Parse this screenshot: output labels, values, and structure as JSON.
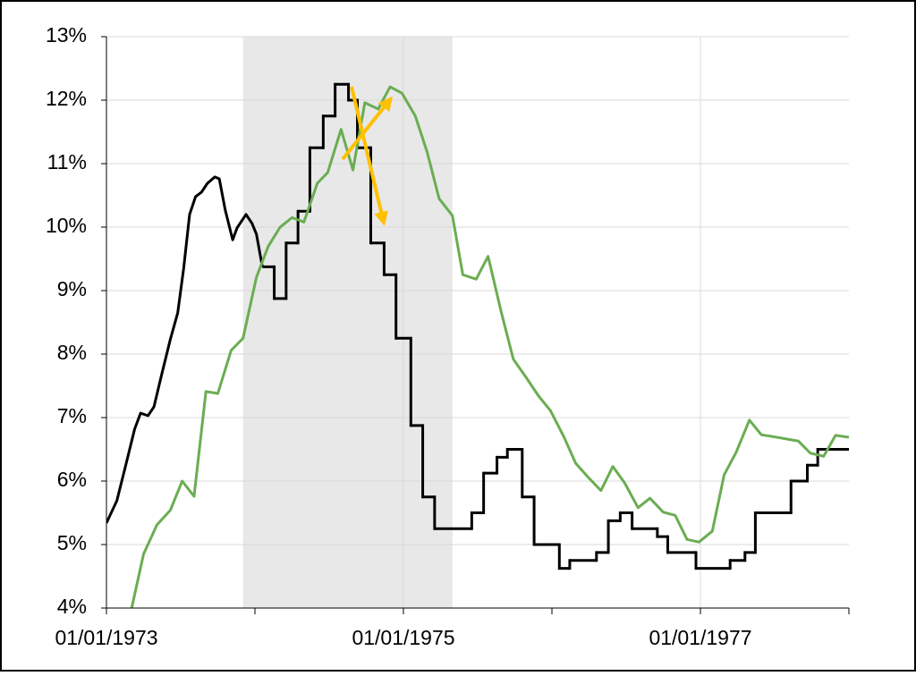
{
  "chart_data": {
    "type": "line",
    "xlim": [
      1973,
      1978
    ],
    "xticks": [
      {
        "value": 1973,
        "label": "01/01/1973"
      },
      {
        "value": 1974,
        "label": null
      },
      {
        "value": 1975,
        "label": "01/01/1975"
      },
      {
        "value": 1976,
        "label": null
      },
      {
        "value": 1977,
        "label": "01/01/1977"
      },
      {
        "value": 1978,
        "label": null
      }
    ],
    "ylim": [
      4,
      13
    ],
    "yticks": [
      {
        "value": 4,
        "label": "4%"
      },
      {
        "value": 5,
        "label": "5%"
      },
      {
        "value": 6,
        "label": "6%"
      },
      {
        "value": 7,
        "label": "7%"
      },
      {
        "value": 8,
        "label": "8%"
      },
      {
        "value": 9,
        "label": "9%"
      },
      {
        "value": 10,
        "label": "10%"
      },
      {
        "value": 11,
        "label": "11%"
      },
      {
        "value": 12,
        "label": "12%"
      },
      {
        "value": 13,
        "label": "13%"
      }
    ],
    "grid": true,
    "shaded_regions": [
      {
        "x0": 1973.92,
        "x1": 1975.33,
        "color": "#e8e8e8"
      }
    ],
    "series": [
      {
        "color": "#000000",
        "x": [
          1973.0,
          1973.07,
          1973.13,
          1973.19,
          1973.23,
          1973.28,
          1973.32,
          1973.37,
          1973.43,
          1973.48,
          1973.52,
          1973.56,
          1973.6,
          1973.64,
          1973.68,
          1973.73,
          1973.76,
          1973.8,
          1973.85,
          1973.88,
          1973.94,
          1973.98,
          1974.01,
          1974.05
        ],
        "values": [
          5.34,
          5.69,
          6.25,
          6.82,
          7.07,
          7.03,
          7.17,
          7.66,
          8.23,
          8.65,
          9.35,
          10.2,
          10.48,
          10.55,
          10.69,
          10.79,
          10.76,
          10.27,
          9.8,
          9.99,
          10.2,
          10.06,
          9.89,
          9.375
        ]
      },
      {
        "color": "#000000",
        "step": true,
        "x": [
          1974.05,
          1974.13,
          1974.21,
          1974.29,
          1974.37,
          1974.46,
          1974.54,
          1974.63,
          1974.69,
          1974.78,
          1974.87,
          1974.95,
          1975.05,
          1975.13,
          1975.21,
          1975.46,
          1975.54,
          1975.63,
          1975.7,
          1975.8,
          1975.88,
          1976.05,
          1976.12,
          1976.3,
          1976.38,
          1976.46,
          1976.54,
          1976.71,
          1976.78,
          1976.97,
          1977.2,
          1977.3,
          1977.37,
          1977.61,
          1977.72,
          1977.79
        ],
        "values": [
          9.375,
          8.875,
          9.75,
          10.25,
          11.25,
          11.75,
          12.25,
          12.0,
          11.25,
          9.75,
          9.25,
          8.25,
          6.875,
          5.75,
          5.25,
          5.5,
          6.125,
          6.375,
          6.5,
          5.75,
          5.0,
          4.625,
          4.75,
          4.875,
          5.375,
          5.5,
          5.25,
          5.125,
          4.875,
          4.625,
          4.75,
          4.875,
          5.5,
          6.0,
          6.25,
          6.5
        ]
      },
      {
        "color": "#6aad52",
        "x": [
          1973.17,
          1973.25,
          1973.34,
          1973.43,
          1973.51,
          1973.59,
          1973.67,
          1973.75,
          1973.84,
          1973.92,
          1974.01,
          1974.09,
          1974.17,
          1974.25,
          1974.33,
          1974.42,
          1974.49,
          1974.58,
          1974.66,
          1974.74,
          1974.83,
          1974.91,
          1974.99,
          1975.08,
          1975.16,
          1975.24,
          1975.33,
          1975.4,
          1975.49,
          1975.57,
          1975.66,
          1975.74,
          1975.83,
          1975.91,
          1975.99,
          1976.08,
          1976.16,
          1976.24,
          1976.33,
          1976.41,
          1976.49,
          1976.58,
          1976.66,
          1976.75,
          1976.83,
          1976.91,
          1976.99,
          1977.08,
          1977.16,
          1977.24,
          1977.33,
          1977.41,
          1977.49,
          1977.66,
          1977.74,
          1977.83,
          1977.91,
          1978.0
        ],
        "values": [
          4.0,
          4.85,
          5.31,
          5.54,
          6.0,
          5.76,
          7.41,
          7.38,
          8.06,
          8.25,
          9.21,
          9.7,
          10.0,
          10.15,
          10.08,
          10.69,
          10.86,
          11.54,
          10.9,
          11.96,
          11.86,
          12.21,
          12.11,
          11.75,
          11.18,
          10.45,
          10.18,
          9.25,
          9.18,
          9.54,
          8.65,
          7.92,
          7.62,
          7.34,
          7.11,
          6.7,
          6.28,
          6.07,
          5.85,
          6.23,
          5.97,
          5.58,
          5.73,
          5.51,
          5.46,
          5.08,
          5.04,
          5.21,
          6.1,
          6.45,
          6.96,
          6.73,
          6.7,
          6.63,
          6.44,
          6.39,
          6.72,
          6.69
        ]
      }
    ]
  }
}
